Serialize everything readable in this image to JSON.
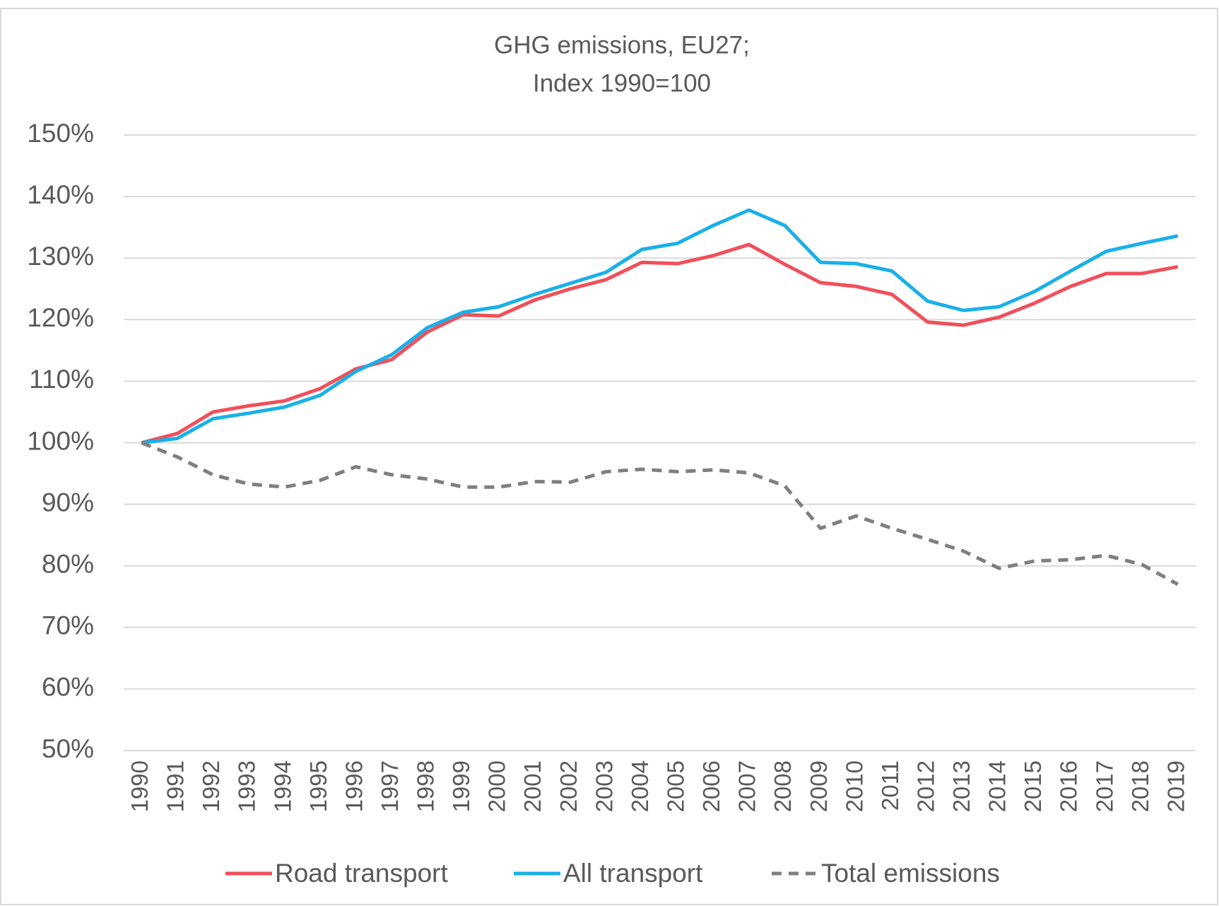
{
  "chart_data": {
    "type": "line",
    "title": "GHG emissions, EU27;",
    "subtitle": "Index 1990=100",
    "categories": [
      "1990",
      "1991",
      "1992",
      "1993",
      "1994",
      "1995",
      "1996",
      "1997",
      "1998",
      "1999",
      "2000",
      "2001",
      "2002",
      "2003",
      "2004",
      "2005",
      "2006",
      "2007",
      "2008",
      "2009",
      "2010",
      "2011",
      "2012",
      "2013",
      "2014",
      "2015",
      "2016",
      "2017",
      "2018",
      "2019"
    ],
    "series": [
      {
        "name": "Road transport",
        "color": "#f0505a",
        "style": "solid",
        "values": [
          100,
          101.5,
          105,
          106,
          106.8,
          108.8,
          112,
          113.5,
          118,
          120.8,
          120.6,
          123.2,
          125,
          126.5,
          129.3,
          129.1,
          130.4,
          132.2,
          129,
          126,
          125.4,
          124.1,
          119.6,
          119.1,
          120.4,
          122.7,
          125.4,
          127.5,
          127.5,
          128.6
        ]
      },
      {
        "name": "All transport",
        "color": "#1ab0e8",
        "style": "solid",
        "values": [
          100,
          100.7,
          103.9,
          104.8,
          105.8,
          107.7,
          111.6,
          114.3,
          118.7,
          121.2,
          122.1,
          124.1,
          125.9,
          127.7,
          131.4,
          132.4,
          135.3,
          137.8,
          135.3,
          129.3,
          129.1,
          127.9,
          123,
          121.5,
          122.1,
          124.6,
          127.9,
          131.1,
          132.4,
          133.6
        ]
      },
      {
        "name": "Total emissions",
        "color": "#7f7f7f",
        "style": "dashed",
        "values": [
          100,
          97.7,
          94.8,
          93.3,
          92.8,
          93.9,
          96.1,
          94.8,
          94.1,
          92.8,
          92.8,
          93.7,
          93.6,
          95.3,
          95.7,
          95.3,
          95.6,
          95.1,
          93,
          86.1,
          88.1,
          86.1,
          84.3,
          82.4,
          79.6,
          80.8,
          81,
          81.7,
          80.2,
          77
        ]
      }
    ],
    "ylim": [
      50,
      150
    ],
    "yticks": [
      {
        "value": 50,
        "label": "50%"
      },
      {
        "value": 60,
        "label": "60%"
      },
      {
        "value": 70,
        "label": "70%"
      },
      {
        "value": 80,
        "label": "80%"
      },
      {
        "value": 90,
        "label": "90%"
      },
      {
        "value": 100,
        "label": "100%"
      },
      {
        "value": 110,
        "label": "110%"
      },
      {
        "value": 120,
        "label": "120%"
      },
      {
        "value": 130,
        "label": "130%"
      },
      {
        "value": 140,
        "label": "140%"
      },
      {
        "value": 150,
        "label": "150%"
      }
    ],
    "grid": true,
    "legend": "bottom"
  }
}
